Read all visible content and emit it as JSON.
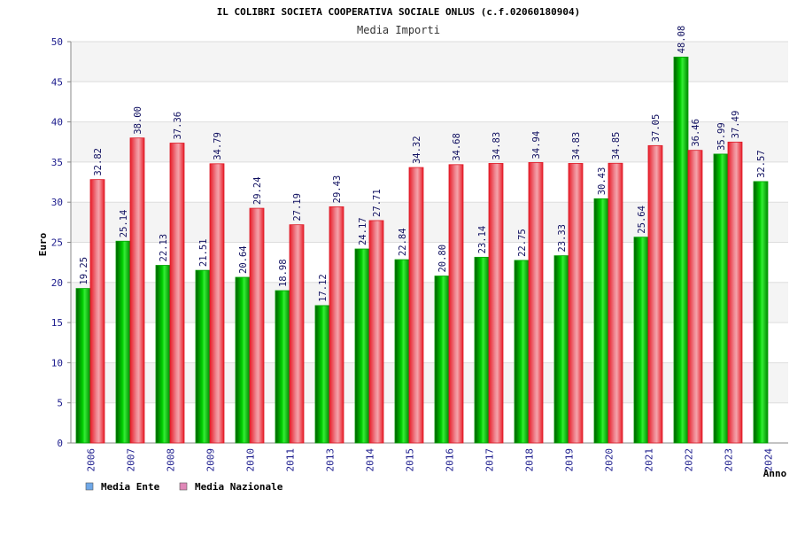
{
  "chart_data": {
    "type": "bar",
    "title": "IL COLIBRI SOCIETA COOPERATIVA SOCIALE ONLUS (c.f.02060180904)",
    "subtitle": "Media Importi",
    "xlabel": "Anno",
    "ylabel": "Euro",
    "ylim": [
      0,
      50
    ],
    "ytick_step": 5,
    "grid": true,
    "legend_position": "bottom-left",
    "categories": [
      "2006",
      "2007",
      "2008",
      "2009",
      "2010",
      "2011",
      "2013",
      "2014",
      "2015",
      "2016",
      "2017",
      "2018",
      "2019",
      "2020",
      "2021",
      "2022",
      "2023",
      "2024"
    ],
    "series": [
      {
        "name": "Media Ente",
        "legend_color": "#6fa8e8",
        "color": "#00a800",
        "values": [
          19.25,
          25.14,
          22.13,
          21.51,
          20.64,
          18.98,
          17.12,
          24.17,
          22.84,
          20.8,
          23.14,
          22.75,
          23.33,
          30.43,
          25.64,
          48.08,
          35.99,
          32.57
        ],
        "labels": [
          "19.25",
          "25.14",
          "22.13",
          "21.51",
          "20.64",
          "18.98",
          "17.12",
          "24.17",
          "22.84",
          "20.80",
          "23.14",
          "22.75",
          "23.33",
          "30.43",
          "25.64",
          "48.08",
          "35.99",
          "32.57"
        ]
      },
      {
        "name": "Media Nazionale",
        "legend_color": "#e088b8",
        "color": "#e8202c",
        "values": [
          32.82,
          38.0,
          37.36,
          34.79,
          29.24,
          27.19,
          29.43,
          27.71,
          34.32,
          34.68,
          34.83,
          34.94,
          34.83,
          34.85,
          37.05,
          36.46,
          37.49,
          null
        ],
        "labels": [
          "32.82",
          "38.00",
          "37.36",
          "34.79",
          "29.24",
          "27.19",
          "29.43",
          "27.71",
          "34.32",
          "34.68",
          "34.83",
          "34.94",
          "34.83",
          "34.85",
          "37.05",
          "36.46",
          "37.49",
          null
        ]
      }
    ]
  }
}
